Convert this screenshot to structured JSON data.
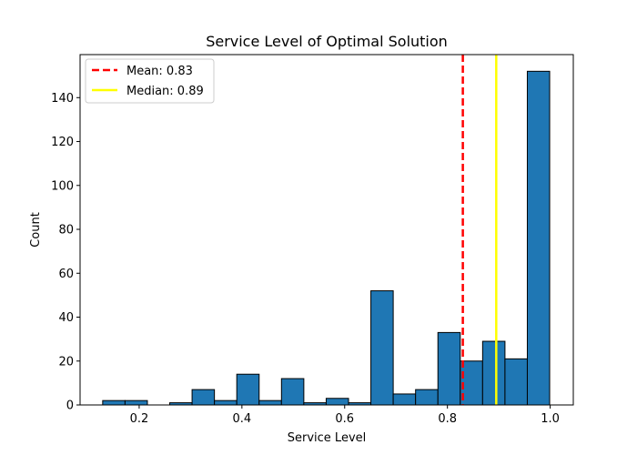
{
  "chart_data": {
    "type": "bar",
    "title": "Service Level of Optimal Solution",
    "xlabel": "Service Level",
    "ylabel": "Count",
    "xlim": [
      0.085,
      1.045
    ],
    "ylim": [
      0,
      159.6
    ],
    "xticks": [
      0.2,
      0.4,
      0.6,
      0.8,
      1.0
    ],
    "xtick_labels": [
      "0.2",
      "0.4",
      "0.6",
      "0.8",
      "1.0"
    ],
    "yticks": [
      0,
      20,
      40,
      60,
      80,
      100,
      120,
      140
    ],
    "ytick_labels": [
      "0",
      "20",
      "40",
      "60",
      "80",
      "100",
      "120",
      "140"
    ],
    "grid": false,
    "legend_position": "top-left",
    "bin_edges": [
      0.129,
      0.1725,
      0.216,
      0.2595,
      0.303,
      0.3465,
      0.39,
      0.4335,
      0.477,
      0.5205,
      0.564,
      0.6075,
      0.651,
      0.6945,
      0.738,
      0.7815,
      0.825,
      0.8685,
      0.912,
      0.9555,
      0.999
    ],
    "counts": [
      2,
      2,
      0,
      1,
      7,
      2,
      14,
      2,
      12,
      1,
      3,
      1,
      52,
      5,
      7,
      33,
      20,
      29,
      21,
      152
    ],
    "bar_color": "#1f77b4",
    "bar_edge_color": "#000000",
    "reference_lines": [
      {
        "label": "Mean: 0.83",
        "value": 0.83,
        "color": "#ff0000",
        "style": "dashed"
      },
      {
        "label": "Median: 0.89",
        "value": 0.895,
        "color": "#ffff00",
        "style": "solid"
      }
    ]
  }
}
